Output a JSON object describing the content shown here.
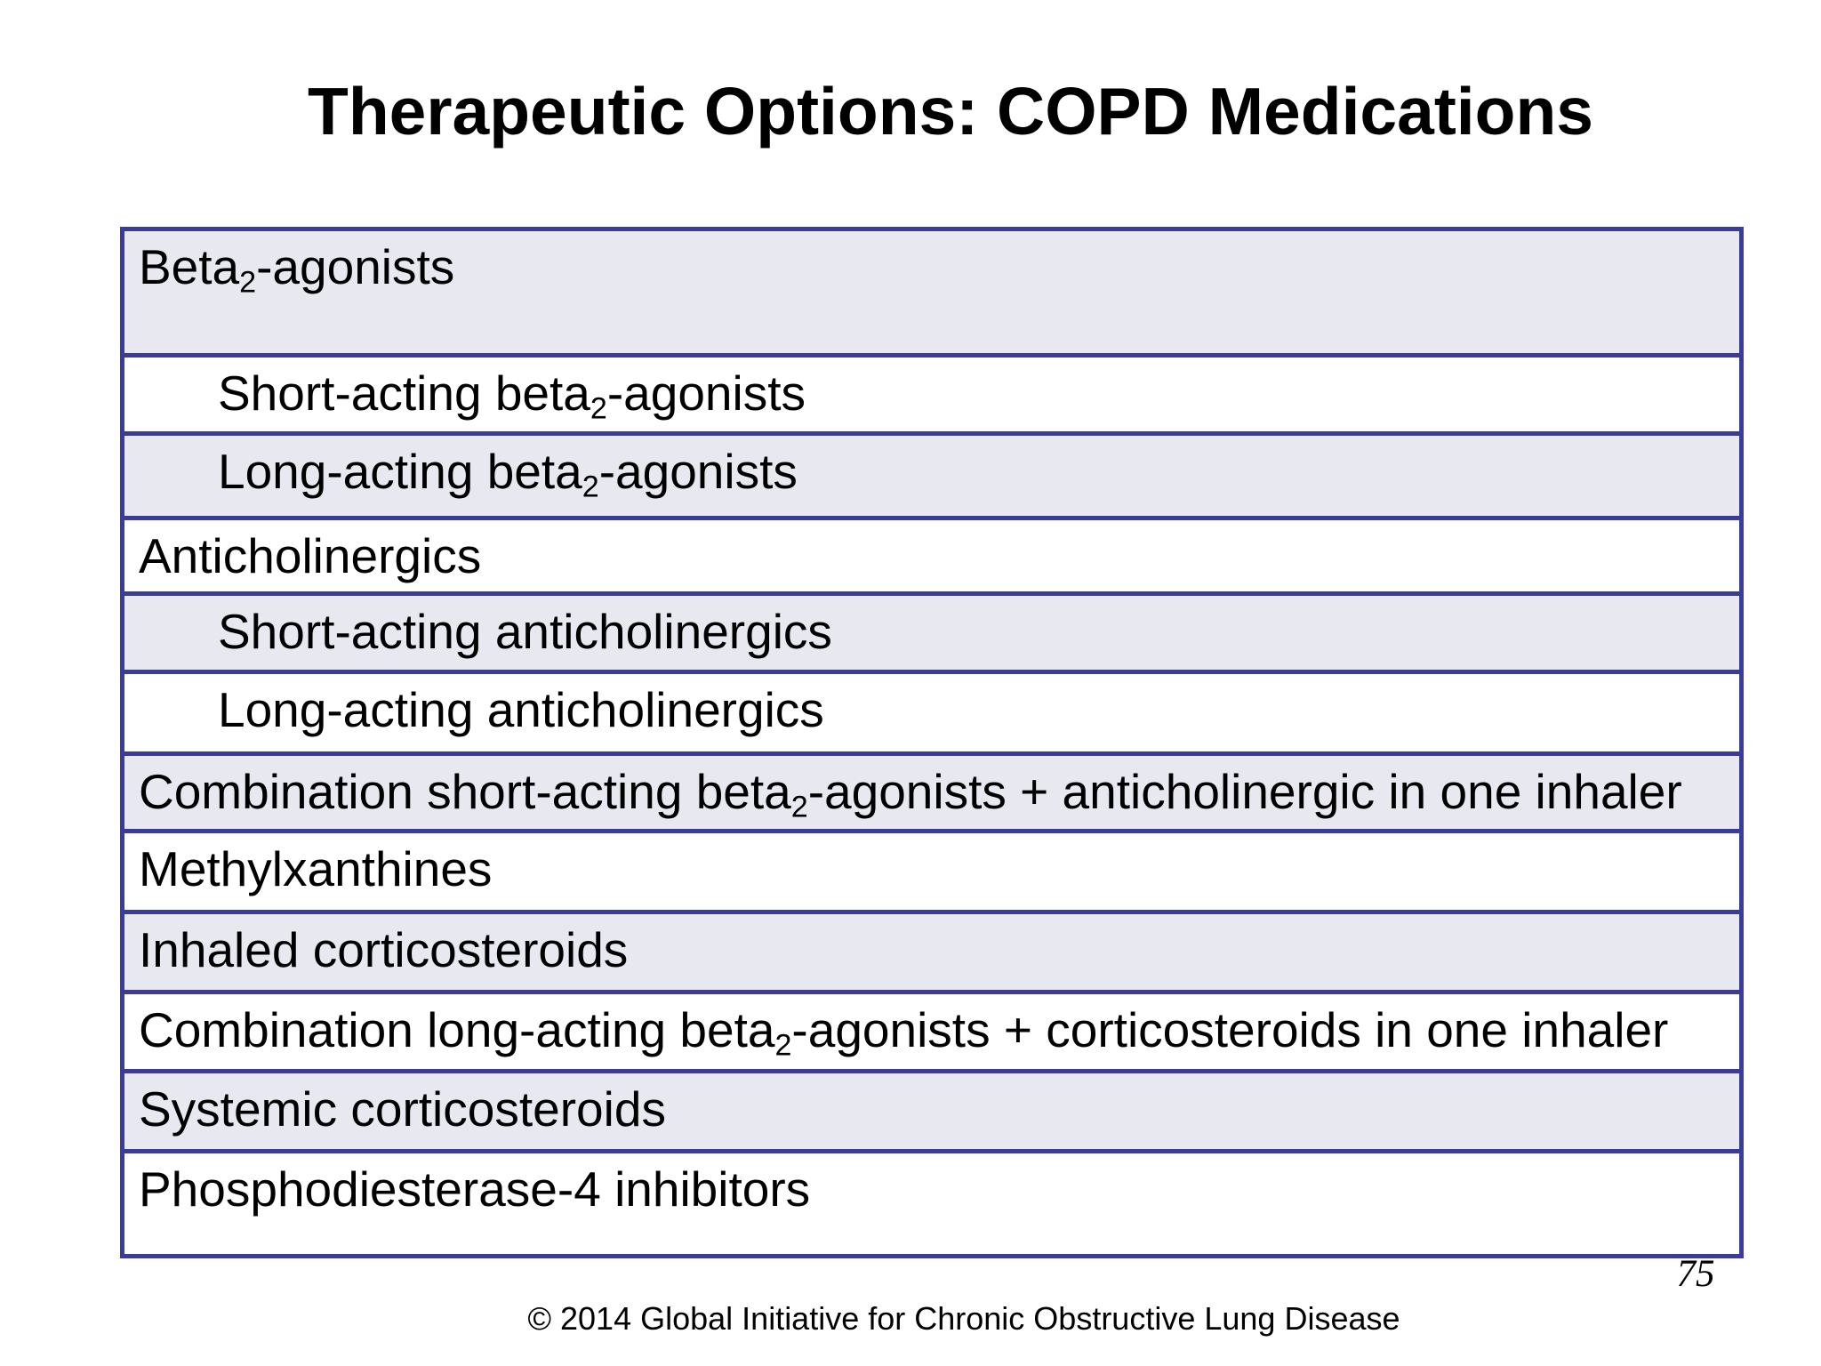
{
  "slide": {
    "title": "Therapeutic Options: COPD Medications",
    "page_number": "75",
    "copyright": "© 2014 Global Initiative for Chronic Obstructive Lung Disease"
  },
  "colors": {
    "table_border": "#3b3b99",
    "row_shaded_bg": "#e8e8f1",
    "row_plain_bg": "#ffffff",
    "text": "#000000"
  },
  "table": {
    "rows": [
      {
        "label_segments": [
          {
            "t": "Beta"
          },
          {
            "t": "2",
            "sub": true
          },
          {
            "t": "-agonists"
          }
        ],
        "subitem": false
      },
      {
        "label_segments": [
          {
            "t": "Short-acting beta"
          },
          {
            "t": "2",
            "sub": true
          },
          {
            "t": "-agonists"
          }
        ],
        "subitem": true
      },
      {
        "label_segments": [
          {
            "t": "Long-acting beta"
          },
          {
            "t": "2",
            "sub": true
          },
          {
            "t": "-agonists"
          }
        ],
        "subitem": true
      },
      {
        "label_segments": [
          {
            "t": "Anticholinergics"
          }
        ],
        "subitem": false
      },
      {
        "label_segments": [
          {
            "t": "Short-acting anticholinergics"
          }
        ],
        "subitem": true
      },
      {
        "label_segments": [
          {
            "t": "Long-acting anticholinergics"
          }
        ],
        "subitem": true
      },
      {
        "label_segments": [
          {
            "t": "Combination short-acting beta"
          },
          {
            "t": "2",
            "sub": true
          },
          {
            "t": "-agonists + anticholinergic in one inhaler"
          }
        ],
        "subitem": false
      },
      {
        "label_segments": [
          {
            "t": "Methylxanthines"
          }
        ],
        "subitem": false
      },
      {
        "label_segments": [
          {
            "t": "Inhaled corticosteroids"
          }
        ],
        "subitem": false
      },
      {
        "label_segments": [
          {
            "t": "Combination long-acting beta"
          },
          {
            "t": "2",
            "sub": true
          },
          {
            "t": "-agonists + corticosteroids in one inhaler"
          }
        ],
        "subitem": false
      },
      {
        "label_segments": [
          {
            "t": "Systemic corticosteroids"
          }
        ],
        "subitem": false
      },
      {
        "label_segments": [
          {
            "t": "Phosphodiesterase-4 inhibitors"
          }
        ],
        "subitem": false
      }
    ]
  }
}
